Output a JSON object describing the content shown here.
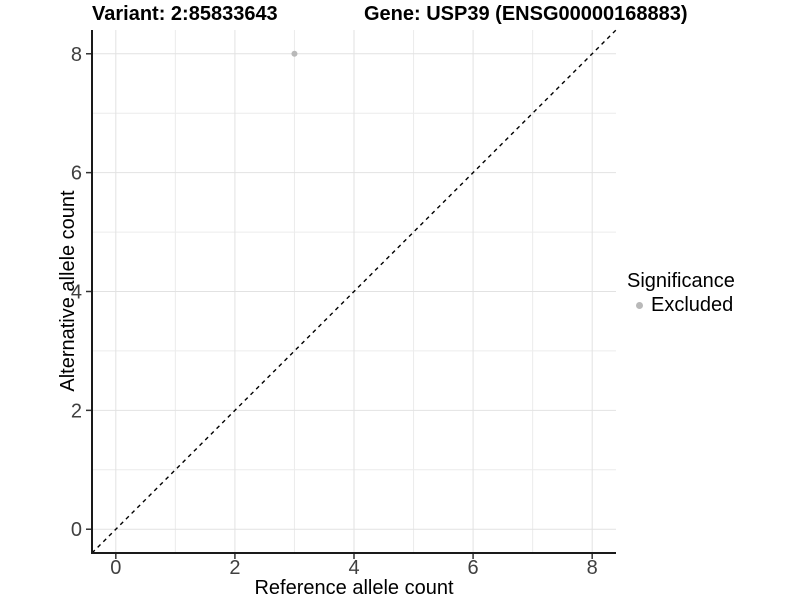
{
  "header": {
    "title_left": "Variant: 2:85833643",
    "title_right": "Gene: USP39 (ENSG00000168883)"
  },
  "chart_data": {
    "type": "scatter",
    "title_left": "Variant: 2:85833643",
    "title_right": "Gene: USP39 (ENSG00000168883)",
    "xlabel": "Reference allele count",
    "ylabel": "Alternative allele count",
    "xlim": [
      -0.4,
      8.4
    ],
    "ylim": [
      -0.4,
      8.4
    ],
    "x_major_breaks": [
      0,
      2,
      4,
      6,
      8
    ],
    "y_major_breaks": [
      0,
      2,
      4,
      6,
      8
    ],
    "x_minor_breaks": [
      1,
      3,
      5,
      7
    ],
    "y_minor_breaks": [
      1,
      3,
      5,
      7
    ],
    "x_tick_labels": [
      "0",
      "2",
      "4",
      "6",
      "8"
    ],
    "y_tick_labels": [
      "0",
      "2",
      "4",
      "6",
      "8"
    ],
    "grid": true,
    "series": [
      {
        "name": "Excluded",
        "color": "#b9b9b9",
        "points": [
          {
            "x": 3,
            "y": 8
          }
        ]
      }
    ],
    "reference_line": {
      "type": "identity",
      "style": "dashed",
      "color": "#000000",
      "from": [
        -0.4,
        -0.4
      ],
      "to": [
        8.4,
        8.4
      ]
    },
    "legend": {
      "title": "Significance",
      "position": "right",
      "items": [
        {
          "label": "Excluded",
          "color": "#b9b9b9",
          "marker": "circle"
        }
      ]
    }
  },
  "style_colors": {
    "grid_major": "#e2e2e2",
    "grid_minor": "#ececec",
    "axis_line": "#1a1a1a",
    "tick_mark": "#333333",
    "tick_label": "#404040",
    "point_fill": "#b9b9b9"
  }
}
